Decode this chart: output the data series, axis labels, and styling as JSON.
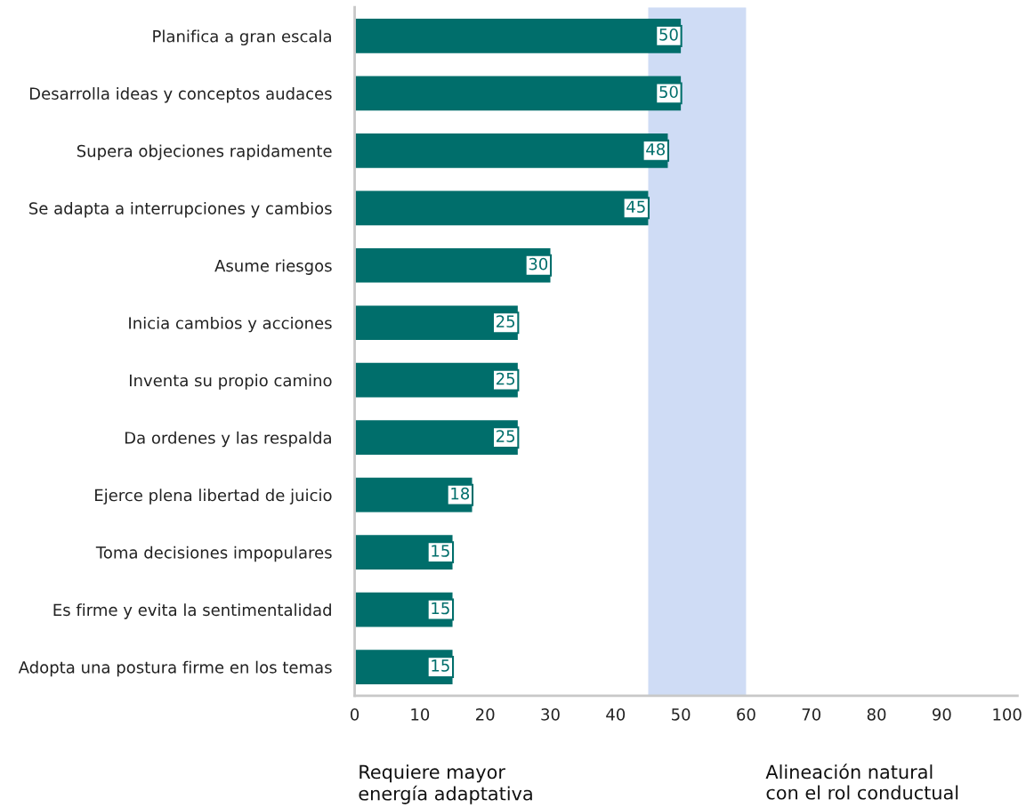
{
  "chart_data": {
    "type": "bar",
    "orientation": "horizontal",
    "categories": [
      "Planifica a gran escala",
      "Desarrolla ideas y conceptos audaces",
      "Supera objeciones rapidamente",
      "Se adapta a interrupciones y cambios",
      "Asume riesgos",
      "Inicia cambios y acciones",
      "Inventa su propio camino",
      "Da ordenes y las respalda",
      "Ejerce plena libertad de juicio",
      "Toma decisiones impopulares",
      "Es firme y evita la sentimentalidad",
      "Adopta una postura firme en los temas"
    ],
    "values": [
      50,
      50,
      48,
      45,
      30,
      25,
      25,
      25,
      18,
      15,
      15,
      15
    ],
    "color": "#006e6b",
    "data_labels": true,
    "xlim": [
      0,
      101.6
    ],
    "xticks": [
      0,
      10,
      20,
      30,
      40,
      50,
      60,
      70,
      80,
      90,
      100
    ],
    "bands": [
      {
        "axis": "x",
        "from": 45,
        "to": 60,
        "color": "#cfdcf5"
      }
    ],
    "annotations": [
      "Requiere mayor\nenergía adaptativa",
      "Alineación natural\ncon el rol conductual"
    ],
    "grid": false,
    "legend": false
  }
}
